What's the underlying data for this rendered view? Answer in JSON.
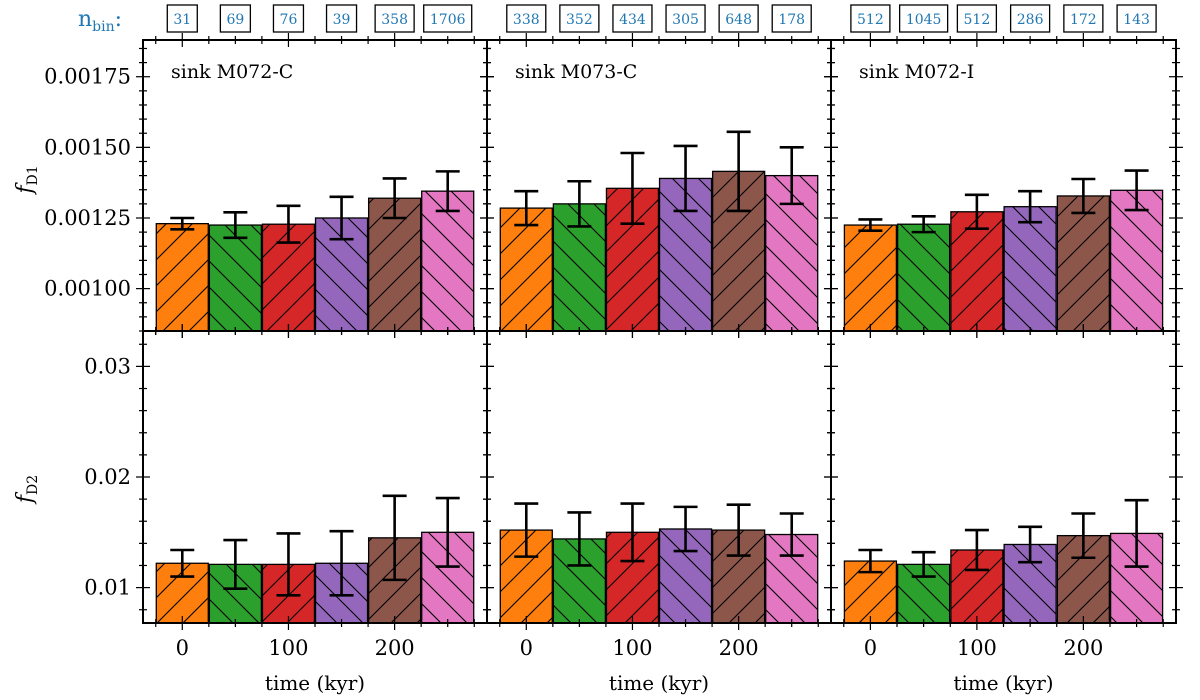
{
  "figure": {
    "nbin_label": {
      "main": "n",
      "sub": "bin",
      "suffix": ":"
    },
    "xlabel": "time (kyr)"
  },
  "colors": {
    "bars": [
      "#ff7f0e",
      "#2ca02c",
      "#d62728",
      "#9467bd",
      "#8c564b",
      "#e377c2"
    ],
    "nbin_text": "#1f77b4",
    "error_bar": "#000000"
  },
  "chart_data": {
    "type": "bar",
    "layout": "grid 2 rows x 3 columns, shared x per column, shared y per row",
    "hatch_pattern": [
      "/",
      "\\",
      "/",
      "\\",
      "/",
      "\\"
    ],
    "x_centers": [
      0,
      50,
      100,
      150,
      200,
      250
    ],
    "xlim": [
      -37,
      287
    ],
    "xticks": [
      0,
      100,
      200
    ],
    "xlabel": "time (kyr)",
    "rows": [
      {
        "ylabel_main": "f",
        "ylabel_sub": "D1",
        "ylim": [
          0.00085,
          0.00188
        ],
        "yticks": [
          0.001,
          0.00125,
          0.0015,
          0.00175
        ],
        "ytick_labels": [
          "0.00100",
          "0.00125",
          "0.00150",
          "0.00175"
        ]
      },
      {
        "ylabel_main": "f",
        "ylabel_sub": "D2",
        "ylim": [
          0.0068,
          0.0332
        ],
        "yticks": [
          0.01,
          0.02,
          0.03
        ],
        "ytick_labels": [
          "0.01",
          "0.02",
          "0.03"
        ]
      }
    ],
    "panels": [
      {
        "title": "sink M072-C",
        "nbin": [
          "31",
          "69",
          "76",
          "39",
          "358",
          "1706"
        ],
        "fD1": {
          "values": [
            0.00123,
            0.001225,
            0.001228,
            0.00125,
            0.00132,
            0.001345
          ],
          "errors": [
            2e-05,
            4.5e-05,
            6.5e-05,
            7.5e-05,
            7e-05,
            7e-05
          ]
        },
        "fD2": {
          "values": [
            0.0122,
            0.0121,
            0.0121,
            0.0122,
            0.0145,
            0.015
          ],
          "errors": [
            0.0012,
            0.0022,
            0.0028,
            0.0029,
            0.0038,
            0.0031
          ]
        }
      },
      {
        "title": "sink M073-C",
        "nbin": [
          "338",
          "352",
          "434",
          "305",
          "648",
          "178"
        ],
        "fD1": {
          "values": [
            0.001285,
            0.0013,
            0.001355,
            0.00139,
            0.001415,
            0.0014
          ],
          "errors": [
            6e-05,
            8e-05,
            0.000125,
            0.000115,
            0.00014,
            0.0001
          ]
        },
        "fD2": {
          "values": [
            0.0152,
            0.0144,
            0.015,
            0.0153,
            0.0152,
            0.0148
          ],
          "errors": [
            0.0024,
            0.0024,
            0.0026,
            0.002,
            0.0023,
            0.0019
          ]
        }
      },
      {
        "title": "sink M072-I",
        "nbin": [
          "512",
          "1045",
          "512",
          "286",
          "172",
          "143"
        ],
        "fD1": {
          "values": [
            0.001225,
            0.001228,
            0.001272,
            0.00129,
            0.001328,
            0.001348
          ],
          "errors": [
            2e-05,
            2.8e-05,
            6e-05,
            5.5e-05,
            6e-05,
            7e-05
          ]
        },
        "fD2": {
          "values": [
            0.0124,
            0.0121,
            0.0134,
            0.0139,
            0.0147,
            0.0149
          ],
          "errors": [
            0.001,
            0.0011,
            0.0018,
            0.0016,
            0.002,
            0.003
          ]
        }
      }
    ]
  }
}
